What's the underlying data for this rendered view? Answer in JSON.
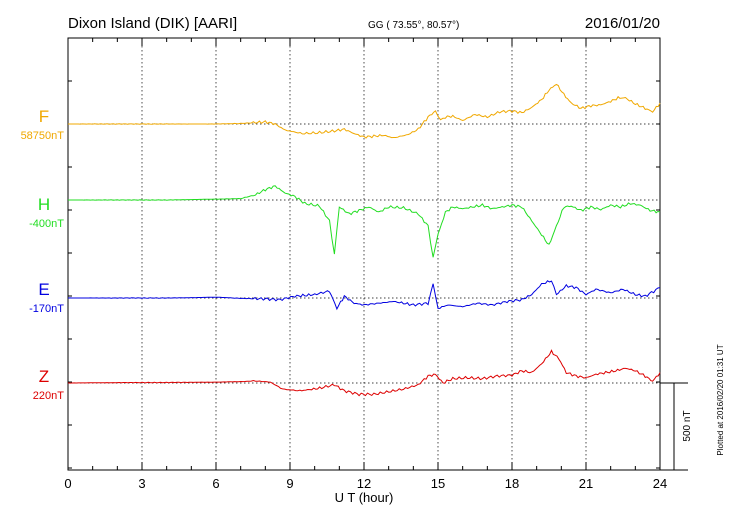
{
  "header": {
    "station": "Dixon Island (DIK)  [AARI]",
    "coords": "GG ( 73.55°,  80.57°)",
    "date": "2016/01/20"
  },
  "footer": {
    "plotted": "Plotted at 2016/02/20 01:31  UT"
  },
  "chart_data": {
    "type": "line",
    "xlabel": "U T (hour)",
    "xlim": [
      0,
      24
    ],
    "xticks": [
      "0",
      "3",
      "6",
      "9",
      "12",
      "15",
      "18",
      "21",
      "24"
    ],
    "grid": true,
    "scale_bar": {
      "label": "500 nT",
      "value_nT": 500
    },
    "series": [
      {
        "name": "F",
        "baseline": "58750nT",
        "color": "#f0a800",
        "points": [
          [
            0,
            0
          ],
          [
            2,
            0
          ],
          [
            4,
            0
          ],
          [
            6,
            0
          ],
          [
            7,
            3
          ],
          [
            7.6,
            8
          ],
          [
            8,
            12
          ],
          [
            8.4,
            0
          ],
          [
            8.8,
            -35
          ],
          [
            9.5,
            -55
          ],
          [
            10.2,
            -50
          ],
          [
            10.8,
            -40
          ],
          [
            11.2,
            -30
          ],
          [
            11.6,
            -55
          ],
          [
            12,
            -75
          ],
          [
            12.4,
            -70
          ],
          [
            12.8,
            -65
          ],
          [
            13.2,
            -80
          ],
          [
            13.8,
            -60
          ],
          [
            14.2,
            -30
          ],
          [
            14.6,
            40
          ],
          [
            14.9,
            75
          ],
          [
            15.1,
            20
          ],
          [
            15.3,
            40
          ],
          [
            15.6,
            45
          ],
          [
            16,
            20
          ],
          [
            16.5,
            55
          ],
          [
            17,
            40
          ],
          [
            17.5,
            70
          ],
          [
            18,
            75
          ],
          [
            18.4,
            65
          ],
          [
            18.8,
            95
          ],
          [
            19.2,
            140
          ],
          [
            19.5,
            195
          ],
          [
            19.8,
            230
          ],
          [
            20.1,
            170
          ],
          [
            20.4,
            120
          ],
          [
            20.8,
            90
          ],
          [
            21.2,
            105
          ],
          [
            21.6,
            110
          ],
          [
            22,
            130
          ],
          [
            22.3,
            150
          ],
          [
            22.6,
            150
          ],
          [
            23,
            115
          ],
          [
            23.4,
            90
          ],
          [
            23.7,
            70
          ],
          [
            24,
            120
          ]
        ]
      },
      {
        "name": "H",
        "baseline": "-400nT",
        "color": "#22dd22",
        "points": [
          [
            0,
            0
          ],
          [
            2,
            0
          ],
          [
            4,
            0
          ],
          [
            6,
            5
          ],
          [
            7,
            8
          ],
          [
            7.6,
            30
          ],
          [
            8,
            60
          ],
          [
            8.4,
            80
          ],
          [
            8.8,
            40
          ],
          [
            9.2,
            20
          ],
          [
            9.6,
            -20
          ],
          [
            10.2,
            -35
          ],
          [
            10.6,
            -120
          ],
          [
            10.8,
            -310
          ],
          [
            11,
            -40
          ],
          [
            11.4,
            -80
          ],
          [
            11.8,
            -60
          ],
          [
            12.2,
            -40
          ],
          [
            12.6,
            -70
          ],
          [
            13,
            -40
          ],
          [
            13.6,
            -45
          ],
          [
            14.2,
            -80
          ],
          [
            14.6,
            -150
          ],
          [
            14.8,
            -330
          ],
          [
            15,
            -200
          ],
          [
            15.3,
            -70
          ],
          [
            15.6,
            -40
          ],
          [
            16,
            -50
          ],
          [
            16.4,
            -40
          ],
          [
            16.8,
            -30
          ],
          [
            17.2,
            -50
          ],
          [
            17.6,
            -40
          ],
          [
            18,
            -30
          ],
          [
            18.4,
            -40
          ],
          [
            18.8,
            -120
          ],
          [
            19.2,
            -200
          ],
          [
            19.5,
            -260
          ],
          [
            19.8,
            -150
          ],
          [
            20.1,
            -40
          ],
          [
            20.4,
            -35
          ],
          [
            20.8,
            -60
          ],
          [
            21.2,
            -40
          ],
          [
            21.6,
            -55
          ],
          [
            22,
            -30
          ],
          [
            22.4,
            -40
          ],
          [
            22.8,
            -20
          ],
          [
            23.2,
            -30
          ],
          [
            23.6,
            -60
          ],
          [
            24,
            -70
          ]
        ]
      },
      {
        "name": "E",
        "baseline": "-170nT",
        "color": "#0000e0",
        "points": [
          [
            0,
            0
          ],
          [
            2,
            0
          ],
          [
            4,
            0
          ],
          [
            5,
            2
          ],
          [
            6,
            5
          ],
          [
            7,
            -2
          ],
          [
            8,
            -5
          ],
          [
            8.6,
            -10
          ],
          [
            9.2,
            10
          ],
          [
            10,
            20
          ],
          [
            10.6,
            40
          ],
          [
            10.9,
            -60
          ],
          [
            11.2,
            10
          ],
          [
            11.6,
            -30
          ],
          [
            12,
            -40
          ],
          [
            12.6,
            -30
          ],
          [
            13.2,
            -20
          ],
          [
            14,
            -40
          ],
          [
            14.6,
            -30
          ],
          [
            14.8,
            80
          ],
          [
            15,
            -60
          ],
          [
            15.4,
            -40
          ],
          [
            16,
            -50
          ],
          [
            16.6,
            -30
          ],
          [
            17.2,
            -40
          ],
          [
            17.8,
            -20
          ],
          [
            18.4,
            -10
          ],
          [
            18.8,
            20
          ],
          [
            19.2,
            80
          ],
          [
            19.6,
            100
          ],
          [
            19.8,
            20
          ],
          [
            20.2,
            70
          ],
          [
            20.6,
            60
          ],
          [
            21,
            20
          ],
          [
            21.4,
            50
          ],
          [
            22,
            30
          ],
          [
            22.5,
            50
          ],
          [
            23,
            20
          ],
          [
            23.4,
            10
          ],
          [
            24,
            60
          ]
        ]
      },
      {
        "name": "Z",
        "baseline": "220nT",
        "color": "#dd0000",
        "points": [
          [
            0,
            0
          ],
          [
            2,
            2
          ],
          [
            4,
            3
          ],
          [
            6,
            5
          ],
          [
            7,
            8
          ],
          [
            7.6,
            12
          ],
          [
            8.2,
            5
          ],
          [
            8.7,
            -35
          ],
          [
            9.4,
            -45
          ],
          [
            10.2,
            -30
          ],
          [
            10.8,
            -10
          ],
          [
            11.2,
            -45
          ],
          [
            11.8,
            -65
          ],
          [
            12.4,
            -65
          ],
          [
            13,
            -50
          ],
          [
            13.6,
            -35
          ],
          [
            14.2,
            -10
          ],
          [
            14.6,
            40
          ],
          [
            14.9,
            50
          ],
          [
            15.2,
            0
          ],
          [
            15.6,
            25
          ],
          [
            16.2,
            30
          ],
          [
            16.8,
            25
          ],
          [
            17.4,
            40
          ],
          [
            18,
            45
          ],
          [
            18.4,
            70
          ],
          [
            18.8,
            60
          ],
          [
            19.2,
            110
          ],
          [
            19.6,
            180
          ],
          [
            19.9,
            140
          ],
          [
            20.2,
            60
          ],
          [
            20.6,
            40
          ],
          [
            21,
            30
          ],
          [
            21.4,
            50
          ],
          [
            21.8,
            60
          ],
          [
            22.2,
            70
          ],
          [
            22.6,
            85
          ],
          [
            23,
            70
          ],
          [
            23.4,
            40
          ],
          [
            23.7,
            10
          ],
          [
            24,
            60
          ]
        ]
      }
    ]
  }
}
